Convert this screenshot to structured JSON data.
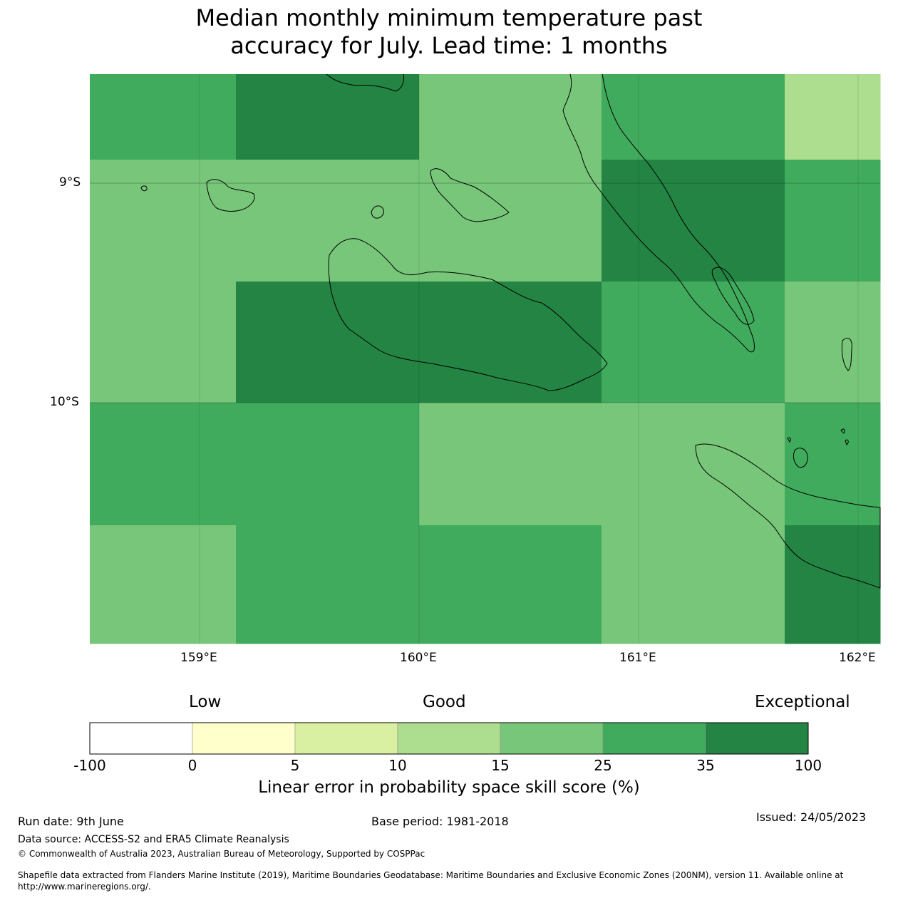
{
  "title": {
    "line1": "Median monthly minimum temperature past",
    "line2": "accuracy for July. Lead time: 1 months"
  },
  "map": {
    "lat_labels": [
      "9°S",
      "10°S"
    ],
    "lon_labels": [
      "159°E",
      "160°E",
      "161°E",
      "162°E"
    ],
    "colors": {
      "very_high": "#238443",
      "high": "#41ab5d",
      "medium": "#78c679",
      "low_medium": "#addd8e"
    },
    "grid_cells": [
      [
        "high",
        "very_high",
        "very_high",
        "medium",
        "medium",
        "high",
        "high",
        "low_medium"
      ],
      [
        "medium",
        "medium",
        "medium",
        "medium",
        "medium",
        "very_high",
        "very_high",
        "high"
      ],
      [
        "medium",
        "very_high",
        "very_high",
        "very_high",
        "very_high",
        "high",
        "high",
        "medium"
      ],
      [
        "high",
        "high",
        "high",
        "medium",
        "medium",
        "medium",
        "medium",
        "high"
      ],
      [
        "medium",
        "high",
        "high",
        "high",
        "high",
        "medium",
        "medium",
        "very_high"
      ]
    ]
  },
  "colorbar": {
    "category_labels": {
      "low": "Low",
      "good": "Good",
      "exceptional": "Exceptional"
    },
    "colors": [
      "#ffffff",
      "#ffffcc",
      "#d9f0a3",
      "#addd8e",
      "#78c679",
      "#41ab5d",
      "#238443"
    ],
    "ticks": [
      "-100",
      "0",
      "5",
      "10",
      "15",
      "25",
      "35",
      "100"
    ],
    "caption": "Linear error in probability space skill score (%)"
  },
  "footer": {
    "run_date": "Run date: 9th June",
    "base_period": "Base period: 1981-2018",
    "issued": "Issued: 24/05/2023",
    "data_source": "Data source: ACCESS-S2 and ERA5 Climate Reanalysis",
    "copyright": "© Commonwealth of Australia 2023, Australian Bureau of Meteorology, Supported by COSPPac",
    "shapefile_line1": "Shapefile data extracted from Flanders Marine Institute (2019), Maritime Boundaries Geodatabase: Maritime Boundaries and Exclusive Economic Zones (200NM), version 11. Available online at",
    "shapefile_line2": "http://www.marineregions.org/."
  }
}
